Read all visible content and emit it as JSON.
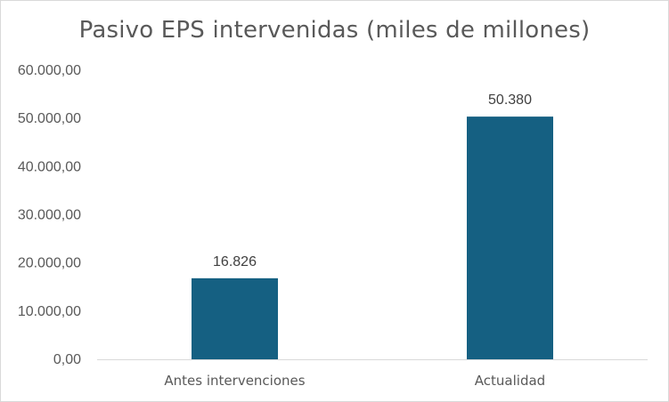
{
  "chart_data": {
    "type": "bar",
    "title": "Pasivo EPS intervenidas (miles de millones)",
    "xlabel": "",
    "ylabel": "",
    "categories": [
      "Antes intervenciones",
      "Actualidad"
    ],
    "values": [
      16826,
      50380
    ],
    "data_labels": [
      "16.826",
      "50.380"
    ],
    "ylim": [
      0,
      60000
    ],
    "yticks": [
      0,
      10000,
      20000,
      30000,
      40000,
      50000,
      60000
    ],
    "ytick_labels": [
      "0,00",
      "10.000,00",
      "20.000,00",
      "30.000,00",
      "40.000,00",
      "50.000,00",
      "60.000,00"
    ],
    "grid": false,
    "legend": "none",
    "bar_color": "#156082",
    "axis_color": "#d9d9d9"
  }
}
